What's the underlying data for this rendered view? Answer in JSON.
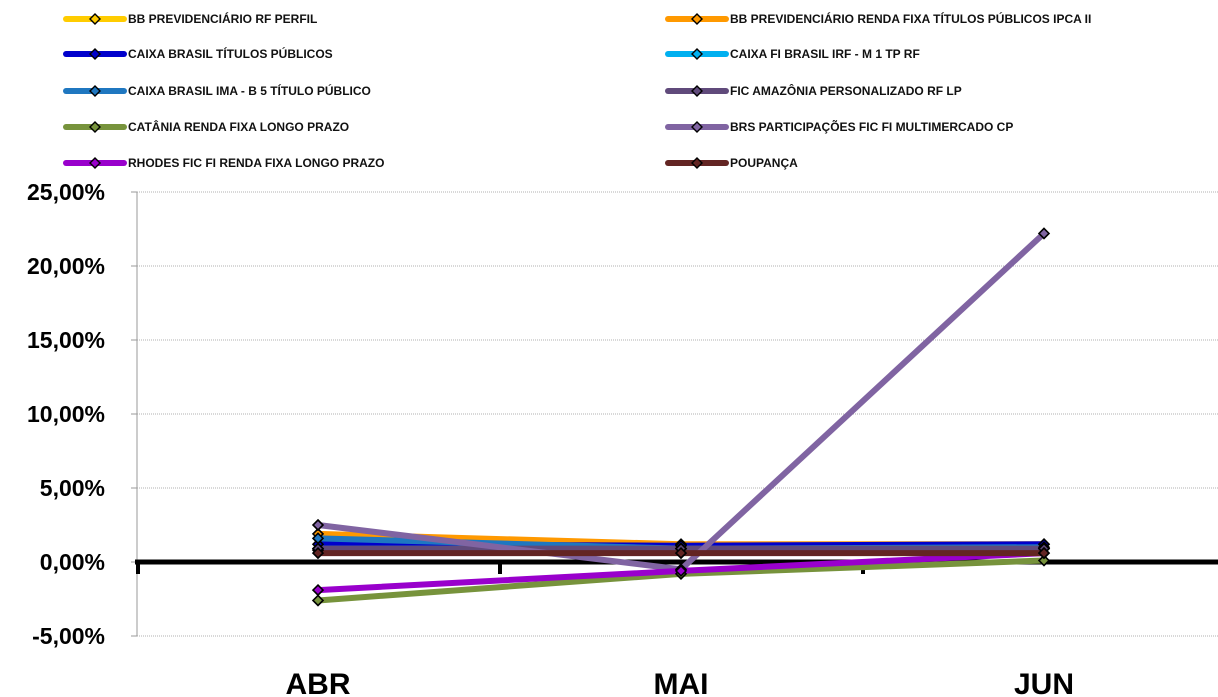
{
  "chart_data": {
    "type": "line",
    "title": "",
    "xlabel": "",
    "ylabel": "",
    "categories": [
      "ABR",
      "MAI",
      "JUN"
    ],
    "ylim": [
      -5,
      25
    ],
    "yticks": [
      -5,
      0,
      5,
      10,
      15,
      20,
      25
    ],
    "ytick_labels": [
      "-5,00%",
      "0,00%",
      "5,00%",
      "10,00%",
      "15,00%",
      "20,00%",
      "25,00%"
    ],
    "grid": "horizontal",
    "legend_position": "top",
    "series": [
      {
        "name": "BB PREVIDENCIÁRIO RF PERFIL",
        "color": "#FFCC00",
        "values": [
          0.8,
          0.9,
          0.9
        ]
      },
      {
        "name": "BB PREVIDENCIÁRIO RENDA FIXA TÍTULOS PÚBLICOS IPCA II",
        "color": "#FF9900",
        "values": [
          1.9,
          1.2,
          1.2
        ]
      },
      {
        "name": "CAIXA BRASIL TÍTULOS PÚBLICOS",
        "color": "#0000CC",
        "values": [
          1.2,
          1.1,
          1.2
        ]
      },
      {
        "name": "CAIXA FI BRASIL IRF - M 1 TP RF",
        "color": "#00B0F0",
        "values": [
          0.9,
          0.9,
          0.9
        ]
      },
      {
        "name": "CAIXA BRASIL IMA - B 5 TÍTULO PÚBLICO",
        "color": "#1F77C0",
        "values": [
          1.6,
          0.9,
          1.0
        ]
      },
      {
        "name": "FIC AMAZÔNIA PERSONALIZADO RF LP",
        "color": "#604A7B",
        "values": [
          0.9,
          0.9,
          0.9
        ]
      },
      {
        "name": "CATÂNIA RENDA FIXA LONGO PRAZO",
        "color": "#77933C",
        "values": [
          -2.6,
          -0.8,
          0.1
        ]
      },
      {
        "name": "BRS PARTICIPAÇÕES FIC FI MULTIMERCADO CP",
        "color": "#8064A2",
        "values": [
          2.5,
          -0.5,
          22.2
        ]
      },
      {
        "name": "RHODES FIC FI RENDA FIXA LONGO PRAZO",
        "color": "#9900CC",
        "values": [
          -1.9,
          -0.6,
          0.6
        ]
      },
      {
        "name": "POUPANÇA",
        "color": "#632523",
        "values": [
          0.6,
          0.6,
          0.6
        ]
      }
    ]
  }
}
